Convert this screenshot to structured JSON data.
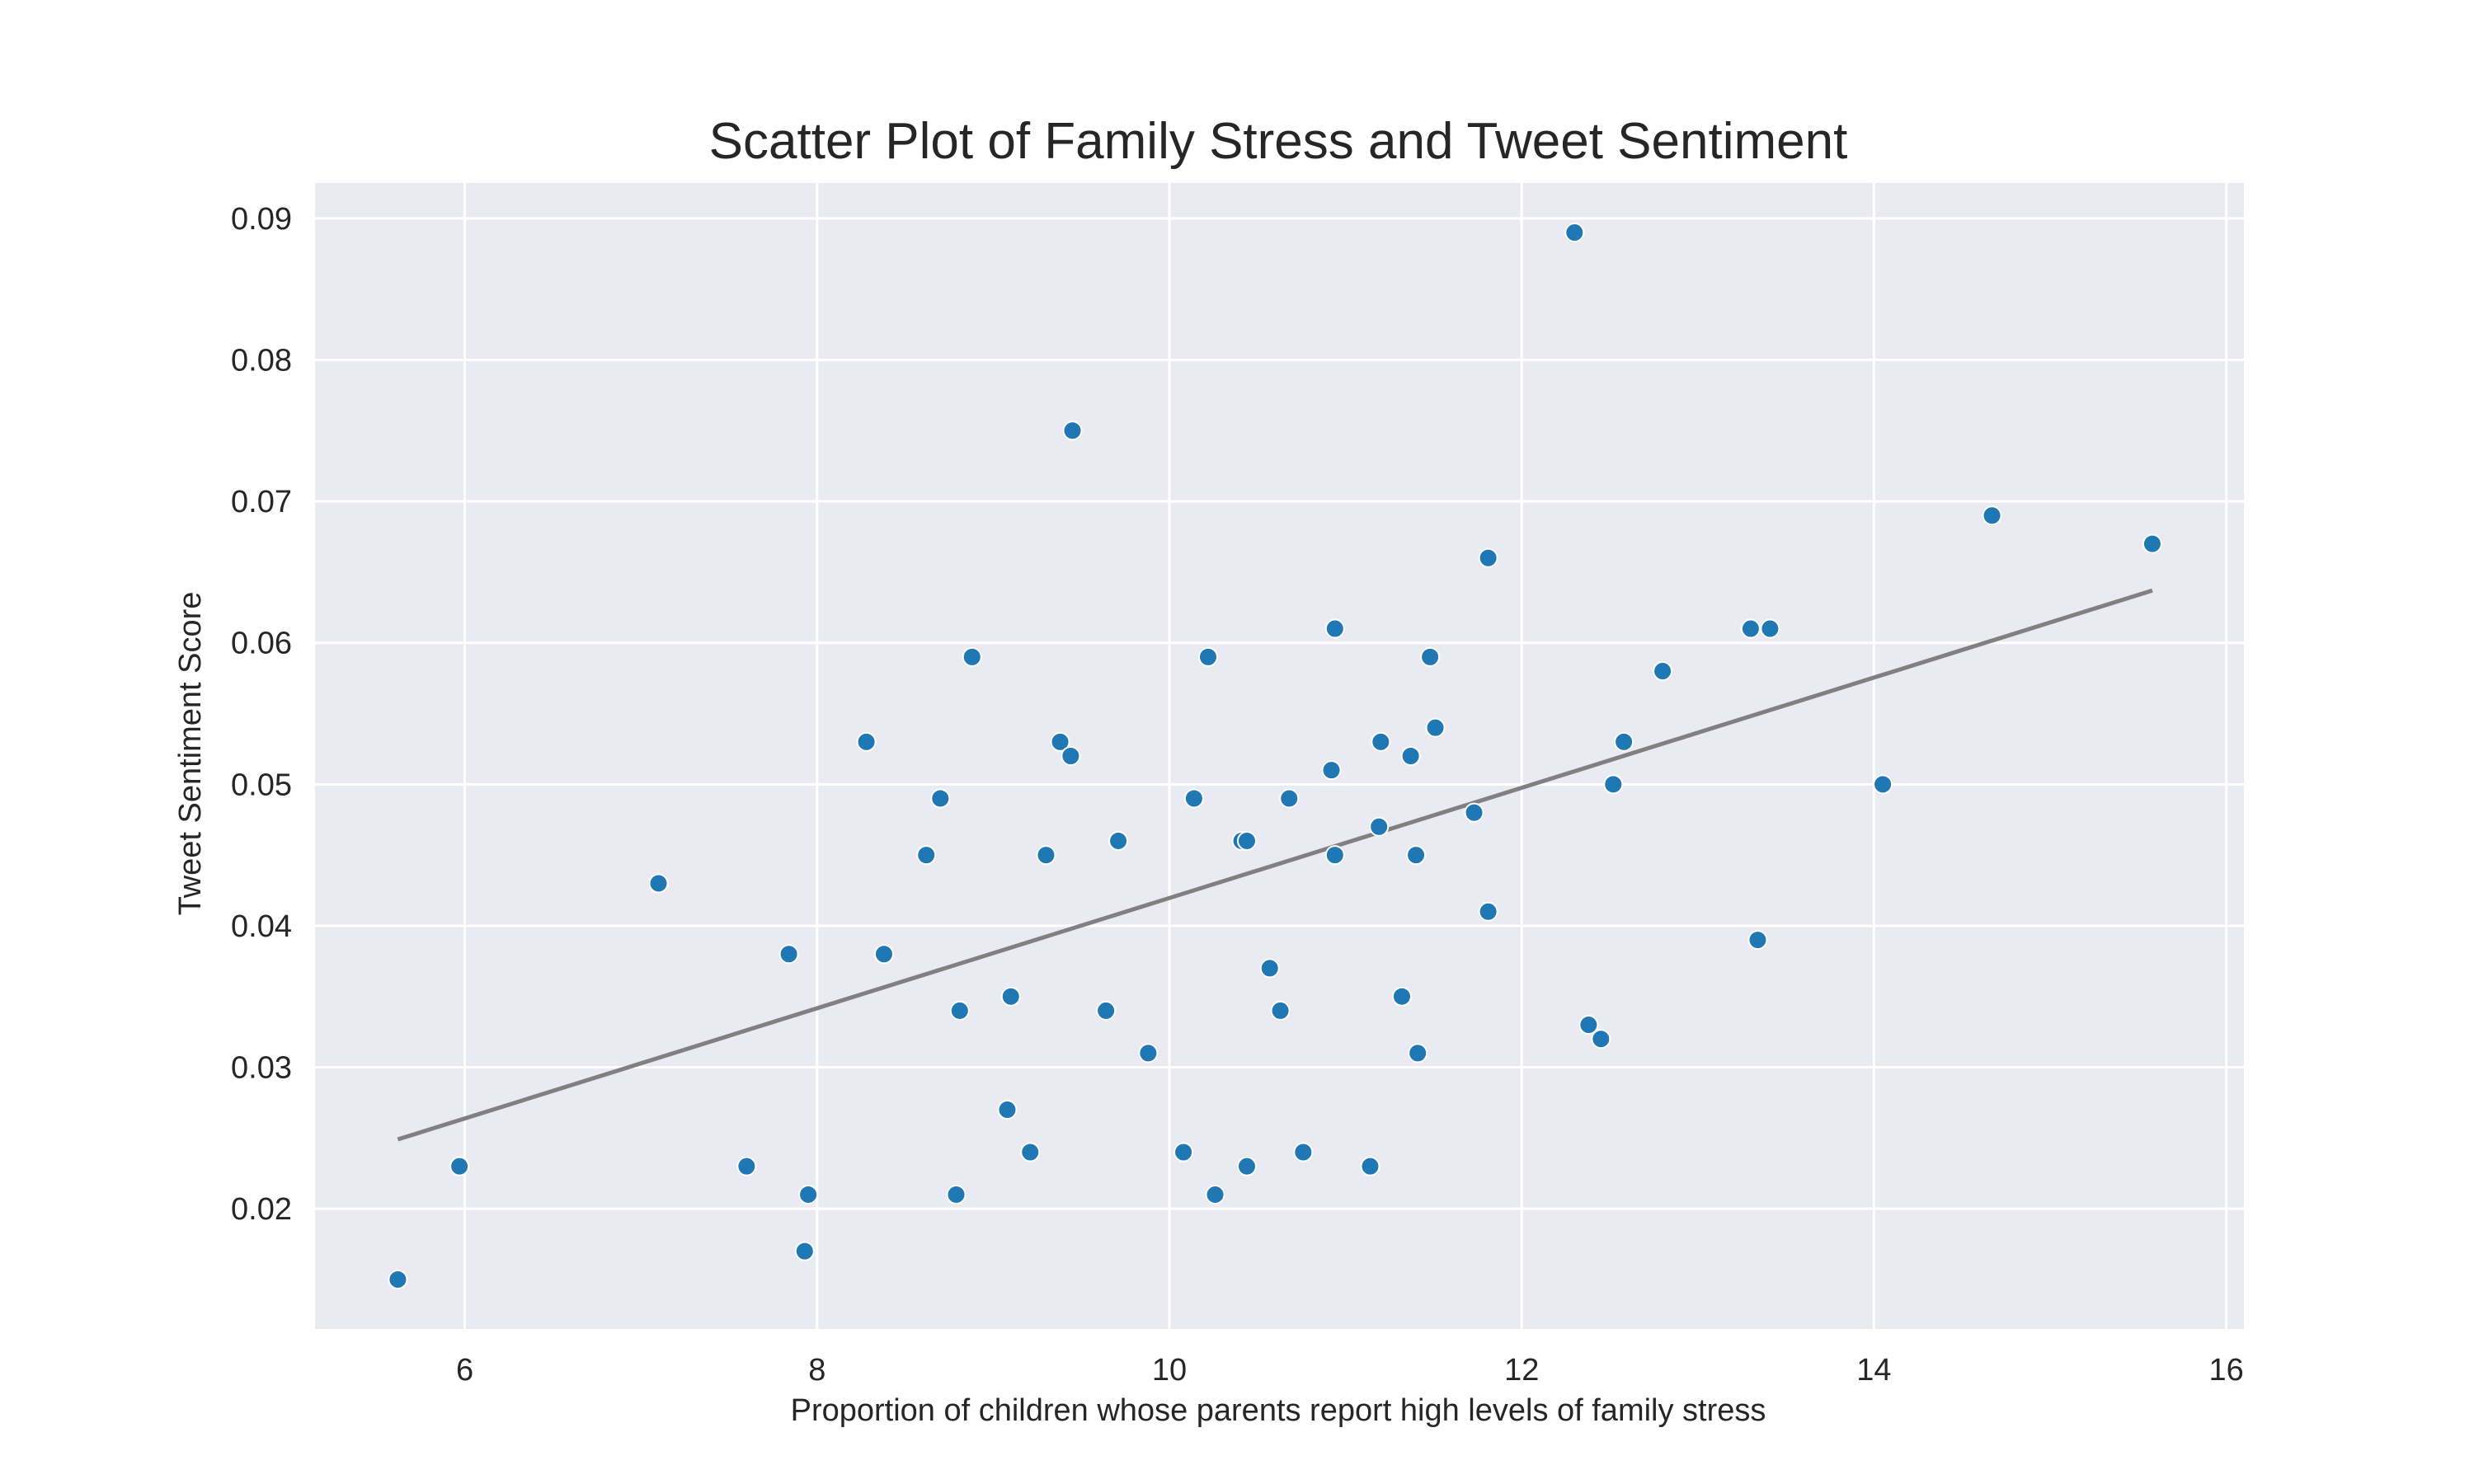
{
  "chart_data": {
    "type": "scatter",
    "title": "Scatter Plot of Family Stress and Tweet Sentiment",
    "xlabel": "Proportion of children whose parents report high levels of family stress",
    "ylabel": "Tweet Sentiment Score",
    "xlim": [
      5.15,
      16.1
    ],
    "ylim": [
      0.0115,
      0.0925
    ],
    "xticks": [
      6,
      8,
      10,
      12,
      14,
      16
    ],
    "xtick_labels": [
      "6",
      "8",
      "10",
      "12",
      "14",
      "16"
    ],
    "yticks": [
      0.02,
      0.03,
      0.04,
      0.05,
      0.06,
      0.07,
      0.08,
      0.09
    ],
    "ytick_labels": [
      "0.02",
      "0.03",
      "0.04",
      "0.05",
      "0.06",
      "0.07",
      "0.08",
      "0.09"
    ],
    "grid": true,
    "colors": {
      "background": "#eaeaf2",
      "points": "#1f77b4",
      "point_edge": "#ffffff",
      "trend_line": "#808080",
      "grid": "#ffffff"
    },
    "points": [
      {
        "x": 5.62,
        "y": 0.015
      },
      {
        "x": 5.97,
        "y": 0.023
      },
      {
        "x": 7.1,
        "y": 0.043
      },
      {
        "x": 7.6,
        "y": 0.023
      },
      {
        "x": 7.84,
        "y": 0.038
      },
      {
        "x": 7.93,
        "y": 0.017
      },
      {
        "x": 7.95,
        "y": 0.021
      },
      {
        "x": 8.28,
        "y": 0.053
      },
      {
        "x": 8.38,
        "y": 0.038
      },
      {
        "x": 8.62,
        "y": 0.045
      },
      {
        "x": 8.7,
        "y": 0.049
      },
      {
        "x": 8.79,
        "y": 0.021
      },
      {
        "x": 8.81,
        "y": 0.034
      },
      {
        "x": 8.88,
        "y": 0.059
      },
      {
        "x": 9.08,
        "y": 0.027
      },
      {
        "x": 9.1,
        "y": 0.035
      },
      {
        "x": 9.21,
        "y": 0.024
      },
      {
        "x": 9.3,
        "y": 0.045
      },
      {
        "x": 9.38,
        "y": 0.053
      },
      {
        "x": 9.44,
        "y": 0.052
      },
      {
        "x": 9.45,
        "y": 0.075
      },
      {
        "x": 9.64,
        "y": 0.034
      },
      {
        "x": 9.71,
        "y": 0.046
      },
      {
        "x": 9.88,
        "y": 0.031
      },
      {
        "x": 10.08,
        "y": 0.024
      },
      {
        "x": 10.14,
        "y": 0.049
      },
      {
        "x": 10.22,
        "y": 0.059
      },
      {
        "x": 10.26,
        "y": 0.021
      },
      {
        "x": 10.41,
        "y": 0.046
      },
      {
        "x": 10.44,
        "y": 0.046
      },
      {
        "x": 10.44,
        "y": 0.023
      },
      {
        "x": 10.57,
        "y": 0.037
      },
      {
        "x": 10.63,
        "y": 0.034
      },
      {
        "x": 10.68,
        "y": 0.049
      },
      {
        "x": 10.76,
        "y": 0.024
      },
      {
        "x": 10.92,
        "y": 0.051
      },
      {
        "x": 10.94,
        "y": 0.045
      },
      {
        "x": 10.94,
        "y": 0.061
      },
      {
        "x": 11.14,
        "y": 0.023
      },
      {
        "x": 11.19,
        "y": 0.047
      },
      {
        "x": 11.2,
        "y": 0.053
      },
      {
        "x": 11.32,
        "y": 0.035
      },
      {
        "x": 11.37,
        "y": 0.052
      },
      {
        "x": 11.4,
        "y": 0.045
      },
      {
        "x": 11.41,
        "y": 0.031
      },
      {
        "x": 11.48,
        "y": 0.059
      },
      {
        "x": 11.51,
        "y": 0.054
      },
      {
        "x": 11.73,
        "y": 0.048
      },
      {
        "x": 11.81,
        "y": 0.066
      },
      {
        "x": 11.81,
        "y": 0.041
      },
      {
        "x": 12.3,
        "y": 0.089
      },
      {
        "x": 12.38,
        "y": 0.033
      },
      {
        "x": 12.45,
        "y": 0.032
      },
      {
        "x": 12.52,
        "y": 0.05
      },
      {
        "x": 12.58,
        "y": 0.053
      },
      {
        "x": 12.8,
        "y": 0.058
      },
      {
        "x": 13.3,
        "y": 0.061
      },
      {
        "x": 13.34,
        "y": 0.039
      },
      {
        "x": 13.41,
        "y": 0.061
      },
      {
        "x": 14.05,
        "y": 0.05
      },
      {
        "x": 14.67,
        "y": 0.069
      },
      {
        "x": 15.58,
        "y": 0.067
      }
    ],
    "trend_line": {
      "x": [
        5.62,
        15.58
      ],
      "y": [
        0.0249,
        0.0637
      ]
    }
  }
}
